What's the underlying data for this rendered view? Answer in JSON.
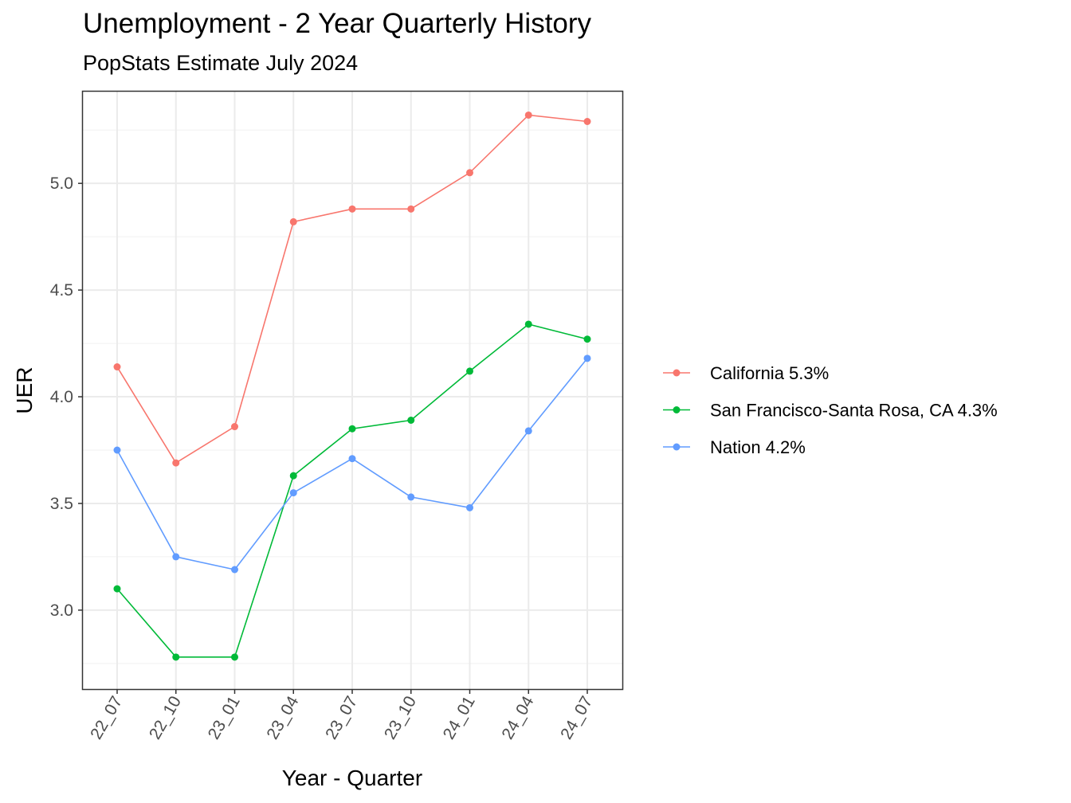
{
  "chart_data": {
    "type": "line",
    "title": "Unemployment - 2 Year Quarterly History",
    "subtitle": "PopStats Estimate July 2024",
    "xlabel": "Year - Quarter",
    "ylabel": "UER",
    "categories": [
      "22_07",
      "22_10",
      "23_01",
      "23_04",
      "23_07",
      "23_10",
      "24_01",
      "24_04",
      "24_07"
    ],
    "ylim": [
      2.63,
      5.43
    ],
    "yticks": [
      3.0,
      3.5,
      4.0,
      4.5,
      5.0
    ],
    "ytick_labels": [
      "3.0",
      "3.5",
      "4.0",
      "4.5",
      "5.0"
    ],
    "grid": true,
    "legend_position": "right",
    "series": [
      {
        "name": "California 5.3%",
        "color": "#F8766D",
        "values": [
          4.14,
          3.69,
          3.86,
          4.82,
          4.88,
          4.88,
          5.05,
          5.32,
          5.29
        ]
      },
      {
        "name": "San Francisco-Santa Rosa, CA 4.3%",
        "color": "#00BA38",
        "values": [
          3.1,
          2.78,
          2.78,
          3.63,
          3.85,
          3.89,
          4.12,
          4.34,
          4.27
        ]
      },
      {
        "name": "Nation 4.2%",
        "color": "#619CFF",
        "values": [
          3.75,
          3.25,
          3.19,
          3.55,
          3.71,
          3.53,
          3.48,
          3.84,
          4.18
        ]
      }
    ]
  }
}
